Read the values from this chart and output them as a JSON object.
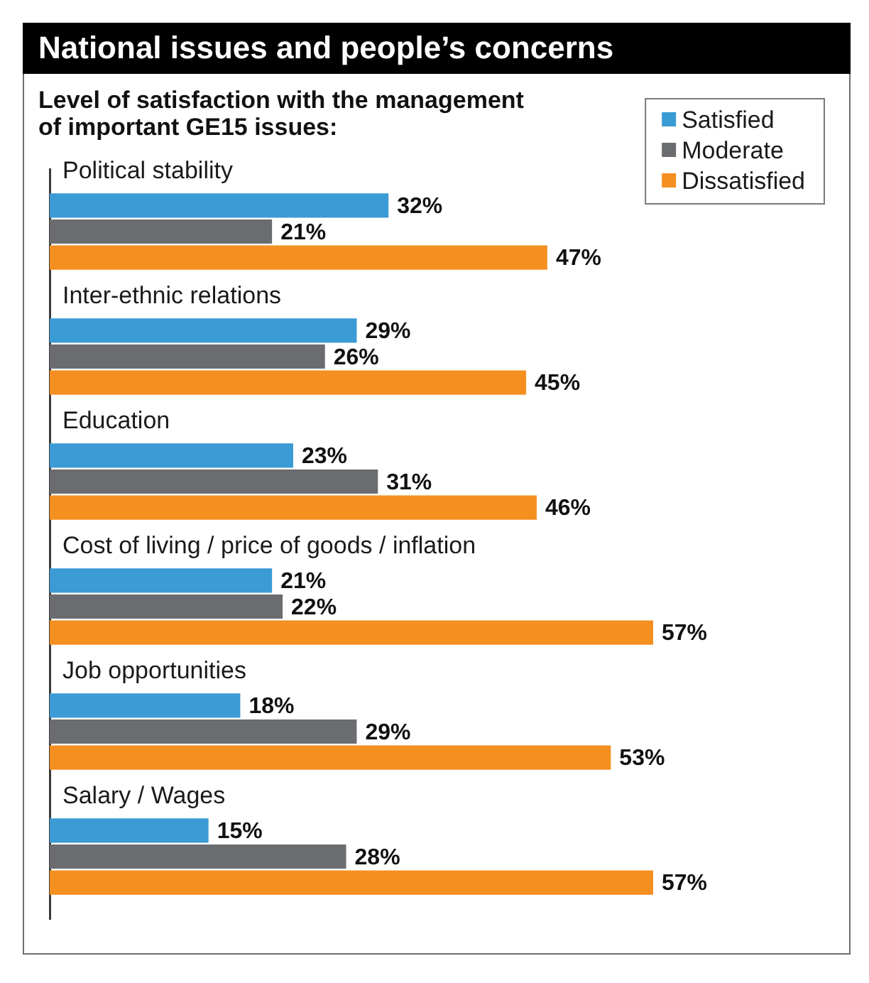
{
  "chart_data": {
    "type": "bar",
    "orientation": "horizontal",
    "title": "National issues and people’s concerns",
    "subtitle": "Level of satisfaction with the management of important GE15 issues:",
    "categories": [
      "Political stability",
      "Inter-ethnic relations",
      "Education",
      "Cost of living / price of goods / inflation",
      "Job opportunities",
      "Salary / Wages"
    ],
    "series": [
      {
        "name": "Satisfied",
        "color": "#3a9bd5",
        "values": [
          32,
          29,
          23,
          21,
          18,
          15
        ],
        "value_labels": [
          "32%",
          "29%",
          "23%",
          "21%",
          "18%",
          "15%"
        ]
      },
      {
        "name": "Moderate",
        "color": "#6b6c6f",
        "values": [
          21,
          26,
          31,
          22,
          29,
          28
        ],
        "value_labels": [
          "21%",
          "26%",
          "31%",
          "22%",
          "29%",
          "28%"
        ]
      },
      {
        "name": "Dissatisfied",
        "color": "#f58f20",
        "values": [
          47,
          45,
          46,
          57,
          53,
          57
        ],
        "value_labels": [
          "47%",
          "45%",
          "46%",
          "57%",
          "53%",
          "57%"
        ]
      }
    ],
    "tick_labels": "y",
    "legend": "top right"
  }
}
